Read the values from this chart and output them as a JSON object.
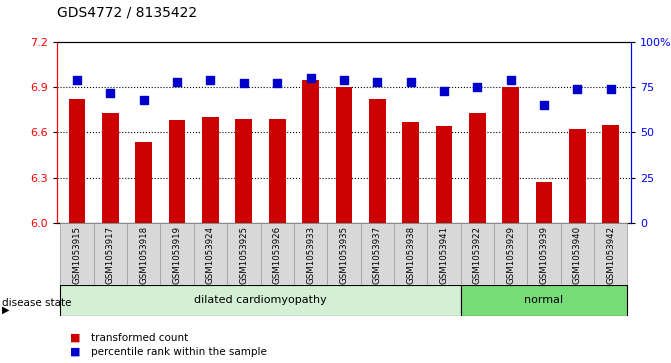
{
  "title": "GDS4772 / 8135422",
  "samples": [
    "GSM1053915",
    "GSM1053917",
    "GSM1053918",
    "GSM1053919",
    "GSM1053924",
    "GSM1053925",
    "GSM1053926",
    "GSM1053933",
    "GSM1053935",
    "GSM1053937",
    "GSM1053938",
    "GSM1053941",
    "GSM1053922",
    "GSM1053929",
    "GSM1053939",
    "GSM1053940",
    "GSM1053942"
  ],
  "bar_values": [
    6.82,
    6.73,
    6.54,
    6.68,
    6.7,
    6.69,
    6.69,
    6.95,
    6.9,
    6.82,
    6.67,
    6.64,
    6.73,
    6.9,
    6.27,
    6.62,
    6.65
  ],
  "percentile_values": [
    79,
    72,
    68,
    78,
    79,
    77,
    77,
    80,
    79,
    78,
    78,
    73,
    75,
    79,
    65,
    74,
    74
  ],
  "bar_color": "#cc0000",
  "percentile_color": "#0000cc",
  "ylim_left": [
    6.0,
    7.2
  ],
  "ylim_right": [
    0,
    100
  ],
  "yticks_left": [
    6.0,
    6.3,
    6.6,
    6.9,
    7.2
  ],
  "yticks_right": [
    0,
    25,
    50,
    75,
    100
  ],
  "ytick_labels_right": [
    "0",
    "25",
    "50",
    "75",
    "100%"
  ],
  "disease_groups": [
    {
      "label": "dilated cardiomyopathy",
      "start": 0,
      "end": 11,
      "color": "#d4f0d4"
    },
    {
      "label": "normal",
      "start": 12,
      "end": 16,
      "color": "#77dd77"
    }
  ],
  "legend_bar_label": "transformed count",
  "legend_dot_label": "percentile rank within the sample",
  "disease_state_label": "disease state",
  "bar_width": 0.5,
  "percentile_marker_size": 28
}
